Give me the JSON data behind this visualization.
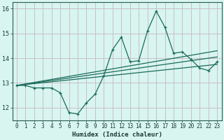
{
  "x": [
    0,
    1,
    2,
    3,
    4,
    5,
    6,
    7,
    8,
    9,
    10,
    11,
    12,
    13,
    14,
    15,
    16,
    17,
    18,
    19,
    20,
    21,
    22,
    23
  ],
  "y_main": [
    12.9,
    12.9,
    12.8,
    12.8,
    12.8,
    12.6,
    11.8,
    11.75,
    12.2,
    12.55,
    13.3,
    14.35,
    14.85,
    13.85,
    13.9,
    15.1,
    15.9,
    15.25,
    14.2,
    14.25,
    13.95,
    13.6,
    13.5,
    13.85
  ],
  "trend1_x": [
    0,
    23
  ],
  "trend1_y": [
    12.9,
    13.75
  ],
  "trend2_x": [
    0,
    23
  ],
  "trend2_y": [
    12.9,
    14.05
  ],
  "trend3_x": [
    0,
    23
  ],
  "trend3_y": [
    12.9,
    14.3
  ],
  "line_color": "#1a6b5a",
  "bg_color": "#d8f5f0",
  "grid_color": "#c8b8c0",
  "xlabel": "Humidex (Indice chaleur)",
  "xlim": [
    -0.5,
    23.5
  ],
  "ylim": [
    11.5,
    16.25
  ],
  "yticks": [
    12,
    13,
    14,
    15,
    16
  ],
  "xticks": [
    0,
    1,
    2,
    3,
    4,
    5,
    6,
    7,
    8,
    9,
    10,
    11,
    12,
    13,
    14,
    15,
    16,
    17,
    18,
    19,
    20,
    21,
    22,
    23
  ],
  "xlabel_fontsize": 6.5,
  "tick_fontsize": 5.5,
  "ytick_fontsize": 6.0
}
